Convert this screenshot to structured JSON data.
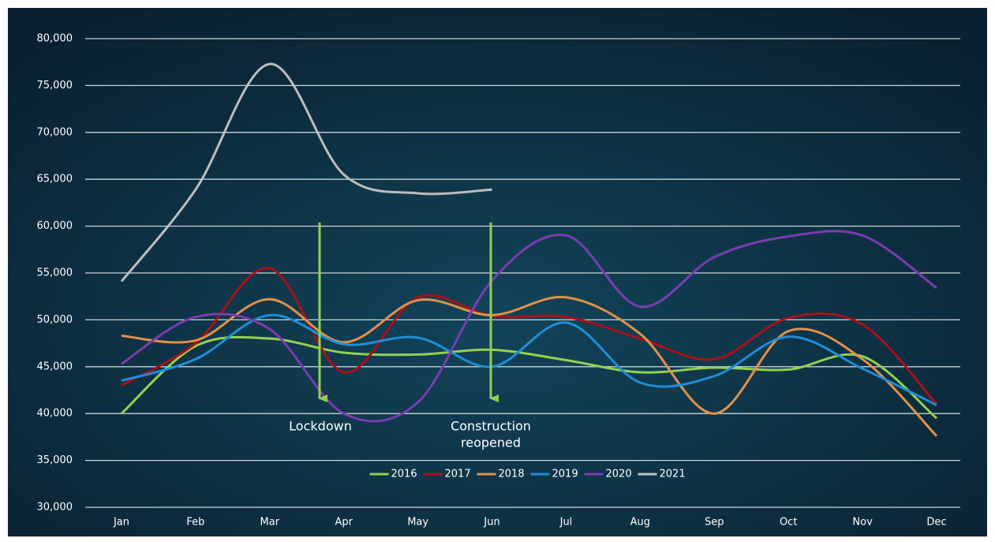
{
  "chart_data": {
    "type": "line",
    "categories": [
      "Jan",
      "Feb",
      "Mar",
      "Apr",
      "May",
      "Jun",
      "Jul",
      "Aug",
      "Sep",
      "Oct",
      "Nov",
      "Dec"
    ],
    "series": [
      {
        "name": "2016",
        "color": "#92d050",
        "values": [
          40000,
          47200,
          48000,
          46500,
          46300,
          46800,
          45700,
          44400,
          44900,
          44700,
          46100,
          39500
        ]
      },
      {
        "name": "2017",
        "color": "#a8101a",
        "values": [
          43000,
          47500,
          55500,
          44400,
          52400,
          50400,
          50300,
          48000,
          45800,
          50200,
          49500,
          41000
        ]
      },
      {
        "name": "2018",
        "color": "#e2904a",
        "values": [
          48300,
          47800,
          52200,
          47600,
          52100,
          50500,
          52400,
          48500,
          40000,
          48800,
          45800,
          37600
        ]
      },
      {
        "name": "2019",
        "color": "#1f8dd6",
        "values": [
          43500,
          45800,
          50500,
          47400,
          48100,
          45000,
          49700,
          43300,
          44000,
          48200,
          44800,
          40900
        ]
      },
      {
        "name": "2020",
        "color": "#7a3cb0",
        "values": [
          45300,
          50300,
          49000,
          40000,
          41200,
          54200,
          59000,
          51400,
          56700,
          58900,
          59000,
          53400
        ]
      },
      {
        "name": "2021",
        "color": "#bdbdbd",
        "values": [
          54100,
          63900,
          77300,
          65500,
          63500,
          63900,
          null,
          null,
          null,
          null,
          null,
          null
        ]
      }
    ],
    "ylim": [
      30000,
      80000
    ],
    "yticks": [
      {
        "value": 30000,
        "label": "30,000"
      },
      {
        "value": 35000,
        "label": "35,000"
      },
      {
        "value": 40000,
        "label": "40,000"
      },
      {
        "value": 45000,
        "label": "45,000"
      },
      {
        "value": 50000,
        "label": "50,000"
      },
      {
        "value": 55000,
        "label": "55,000"
      },
      {
        "value": 60000,
        "label": "60,000"
      },
      {
        "value": 65000,
        "label": "65,000"
      },
      {
        "value": 70000,
        "label": "70,000"
      },
      {
        "value": 75000,
        "label": "75,000"
      },
      {
        "value": 80000,
        "label": "80,000"
      }
    ],
    "grid": true,
    "legend": "bottom",
    "annotations": [
      {
        "lines": [
          "Lockdown"
        ]
      },
      {
        "lines": [
          "Construction",
          "reopened"
        ]
      }
    ]
  }
}
